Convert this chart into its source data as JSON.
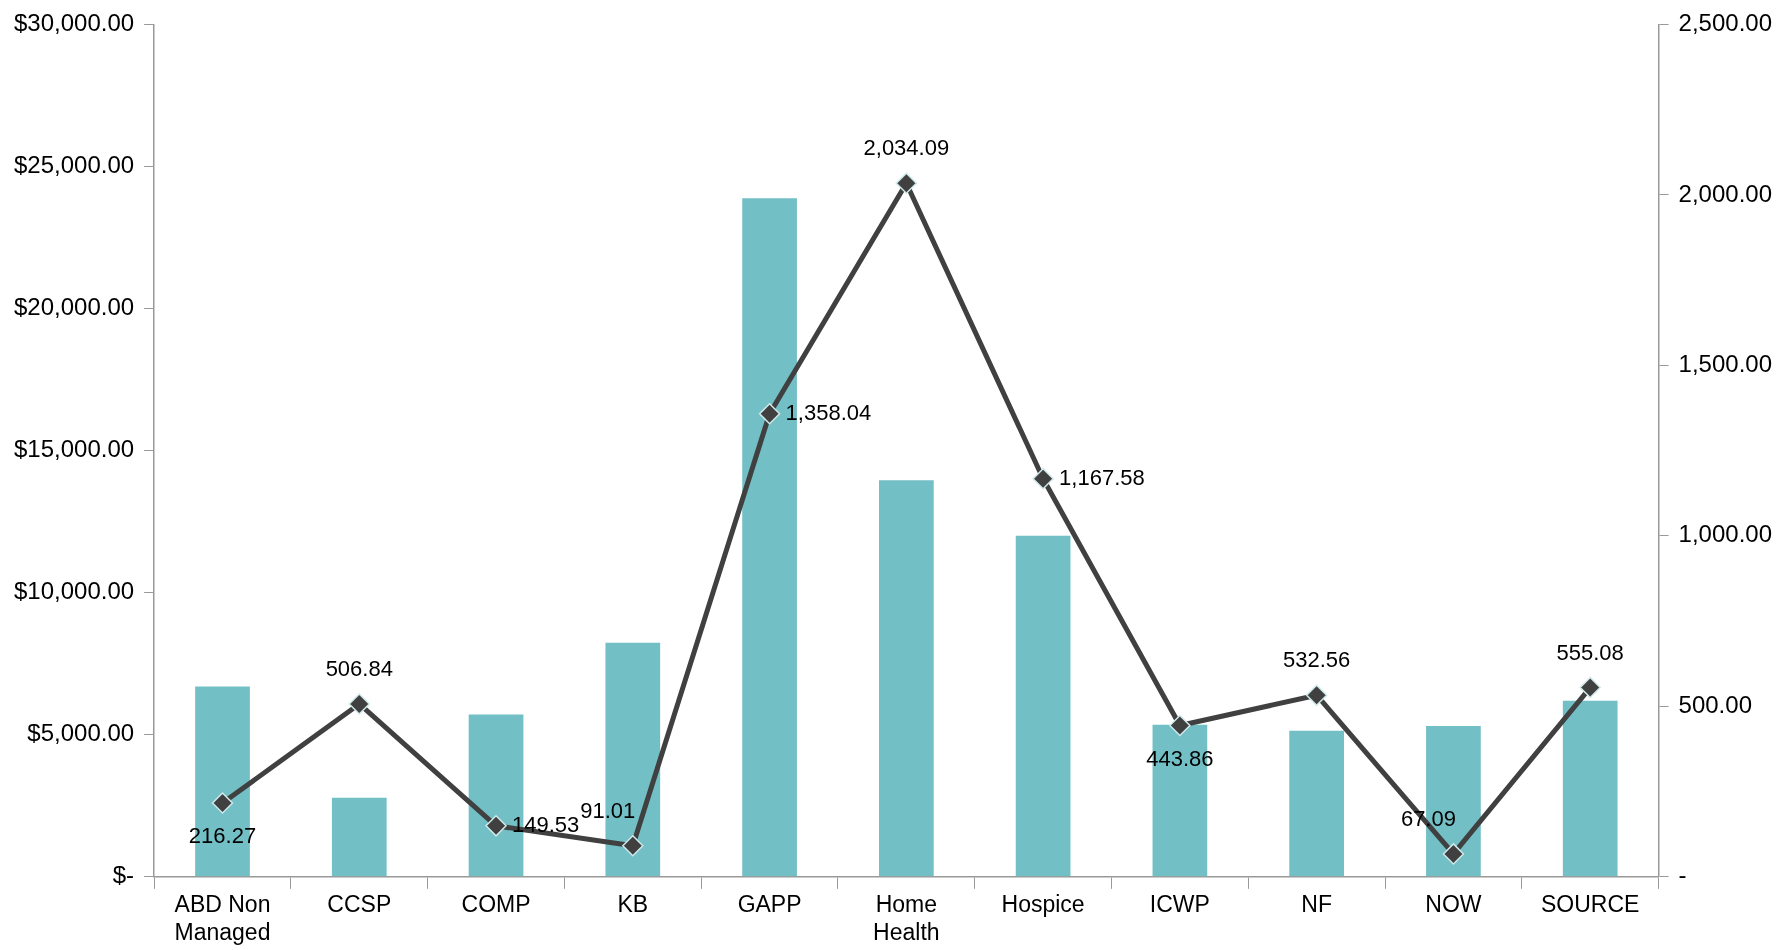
{
  "chart_data": {
    "type": "bar",
    "categories": [
      "ABD Non Managed",
      "CCSP",
      "COMP",
      "KB",
      "GAPP",
      "Home Health",
      "Hospice",
      "ICWP",
      "NF",
      "NOW",
      "SOURCE"
    ],
    "series": [
      {
        "color": "#72bfc5",
        "values": [
          6700,
          2780,
          5710,
          8240,
          23880,
          13960,
          12000,
          5350,
          5140,
          5310,
          6200
        ]
      },
      {
        "type": "line",
        "axis": "y2",
        "color": "#404040",
        "values": [
          216.27,
          506.84,
          149.53,
          91.01,
          1358.04,
          2034.09,
          1167.58,
          443.86,
          532.56,
          67.09,
          555.08
        ],
        "value_labels": [
          "216.27",
          "506.84",
          "149.53",
          "91.01",
          "1,358.04",
          "2,034.09",
          "1,167.58",
          "443.86",
          "532.56",
          "67.09",
          "555.08"
        ]
      }
    ],
    "ylim": [
      0,
      30000
    ],
    "yticks": [
      {
        "value": 0,
        "label": "$-"
      },
      {
        "value": 5000,
        "label": "$5,000.00"
      },
      {
        "value": 10000,
        "label": "$10,000.00"
      },
      {
        "value": 15000,
        "label": "$15,000.00"
      },
      {
        "value": 20000,
        "label": "$20,000.00"
      },
      {
        "value": 25000,
        "label": "$25,000.00"
      },
      {
        "value": 30000,
        "label": "$30,000.00"
      }
    ],
    "y2lim": [
      0,
      2500
    ],
    "y2ticks": [
      {
        "value": 0,
        "label": "-"
      },
      {
        "value": 500,
        "label": "500.00"
      },
      {
        "value": 1000,
        "label": "1,000.00"
      },
      {
        "value": 1500,
        "label": "1,500.00"
      },
      {
        "value": 2000,
        "label": "2,000.00"
      },
      {
        "value": 2500,
        "label": "2,500.00"
      }
    ],
    "grid": false,
    "legend": false,
    "marker": "diamond",
    "line_style": "solid"
  }
}
